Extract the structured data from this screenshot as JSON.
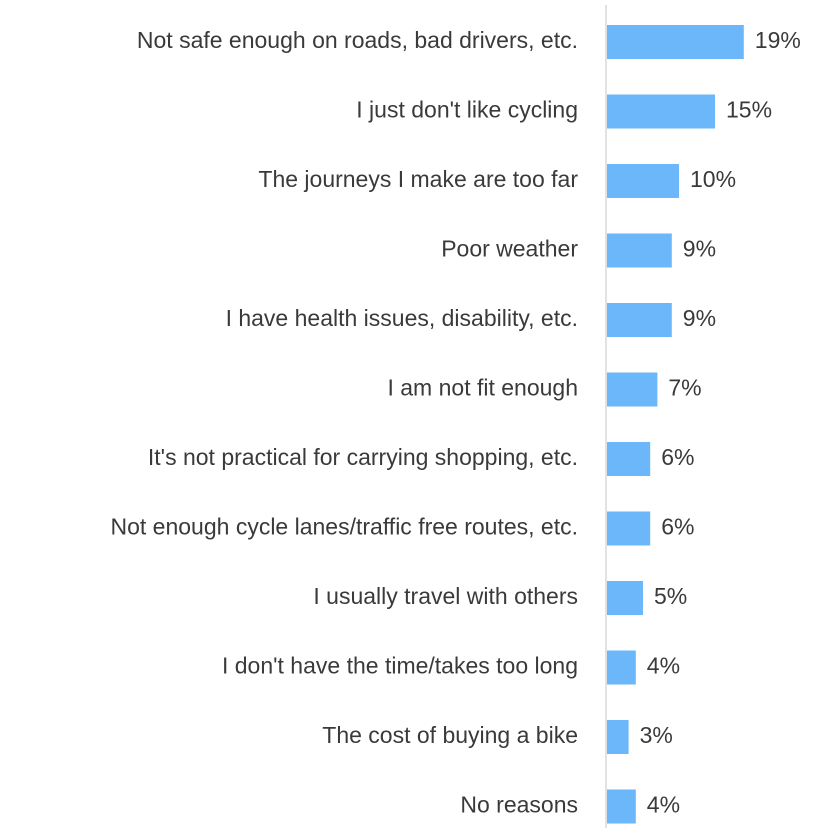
{
  "chart_data": {
    "type": "barh",
    "categories": [
      "Not safe enough on roads, bad drivers, etc.",
      "I just don't like cycling",
      "The journeys I make are too far",
      "Poor weather",
      "I have health issues, disability, etc.",
      "I am not fit enough",
      "It's not practical for carrying shopping, etc.",
      "Not enough cycle lanes/traffic free routes, etc.",
      "I usually travel with others",
      "I don't have the time/takes too long",
      "The cost of buying a bike",
      "No reasons"
    ],
    "values": [
      19,
      15,
      10,
      9,
      9,
      7,
      6,
      6,
      5,
      4,
      3,
      4
    ],
    "value_labels": [
      "19%",
      "15%",
      "10%",
      "9%",
      "9%",
      "7%",
      "6%",
      "6%",
      "5%",
      "4%",
      "3%",
      "4%"
    ],
    "color": "#6bb7fa"
  }
}
